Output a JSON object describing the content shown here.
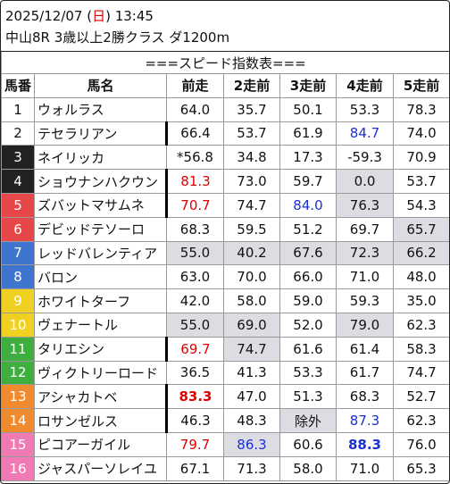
{
  "header": {
    "date_prefix": "2025/12/07 (",
    "weekday": "日",
    "time_suffix": ") 13:45",
    "race": "中山8R 3歳以上2勝クラス ダ1200m"
  },
  "table_title": "===スピード指数表===",
  "columns": [
    "馬番",
    "馬名",
    "前走",
    "2走前",
    "3走前",
    "4走前",
    "5走前"
  ],
  "rows": [
    {
      "no": "1",
      "name": "ウォルラス",
      "v": [
        "64.0",
        "35.7",
        "50.1",
        "53.3",
        "78.3"
      ]
    },
    {
      "no": "2",
      "name": "テセラリアン",
      "v": [
        "66.4",
        "53.7",
        "61.9",
        "84.7",
        "74.0"
      ]
    },
    {
      "no": "3",
      "name": "ネイリッカ",
      "v": [
        "*56.8",
        "34.8",
        "17.3",
        "-59.3",
        "70.9"
      ]
    },
    {
      "no": "4",
      "name": "ショウナンハクウン",
      "v": [
        "81.3",
        "73.0",
        "59.7",
        "0.0",
        "53.7"
      ]
    },
    {
      "no": "5",
      "name": "ズバットマサムネ",
      "v": [
        "70.7",
        "74.7",
        "84.0",
        "76.3",
        "54.3"
      ]
    },
    {
      "no": "6",
      "name": "デビッドテソーロ",
      "v": [
        "68.3",
        "59.5",
        "51.2",
        "69.7",
        "65.7"
      ]
    },
    {
      "no": "7",
      "name": "レッドバレンティア",
      "v": [
        "55.0",
        "40.2",
        "67.6",
        "72.3",
        "66.2"
      ]
    },
    {
      "no": "8",
      "name": "バロン",
      "v": [
        "63.0",
        "70.0",
        "66.0",
        "71.0",
        "48.0"
      ]
    },
    {
      "no": "9",
      "name": "ホワイトターフ",
      "v": [
        "42.0",
        "58.0",
        "59.0",
        "59.3",
        "35.0"
      ]
    },
    {
      "no": "10",
      "name": "ヴェナートル",
      "v": [
        "55.0",
        "69.0",
        "52.0",
        "79.0",
        "62.3"
      ]
    },
    {
      "no": "11",
      "name": "タリエシン",
      "v": [
        "69.7",
        "74.7",
        "61.6",
        "61.4",
        "58.3"
      ]
    },
    {
      "no": "12",
      "name": "ヴィクトリーロード",
      "v": [
        "36.5",
        "41.3",
        "53.3",
        "61.7",
        "74.7"
      ]
    },
    {
      "no": "13",
      "name": "アシャカトベ",
      "v": [
        "83.3",
        "47.0",
        "51.3",
        "68.3",
        "52.7"
      ]
    },
    {
      "no": "14",
      "name": "ロサンゼルス",
      "v": [
        "46.3",
        "48.3",
        "除外",
        "87.3",
        "62.3"
      ]
    },
    {
      "no": "15",
      "name": "ピコアーガイル",
      "v": [
        "79.7",
        "86.3",
        "60.6",
        "88.3",
        "76.0"
      ]
    },
    {
      "no": "16",
      "name": "ジャスパーソレイユ",
      "v": [
        "67.1",
        "71.3",
        "58.0",
        "71.0",
        "65.3"
      ]
    }
  ],
  "colors": {
    "red_text": "#e00000",
    "blue_text": "#1a2fd6",
    "gray_cell": "#dcdde3"
  }
}
